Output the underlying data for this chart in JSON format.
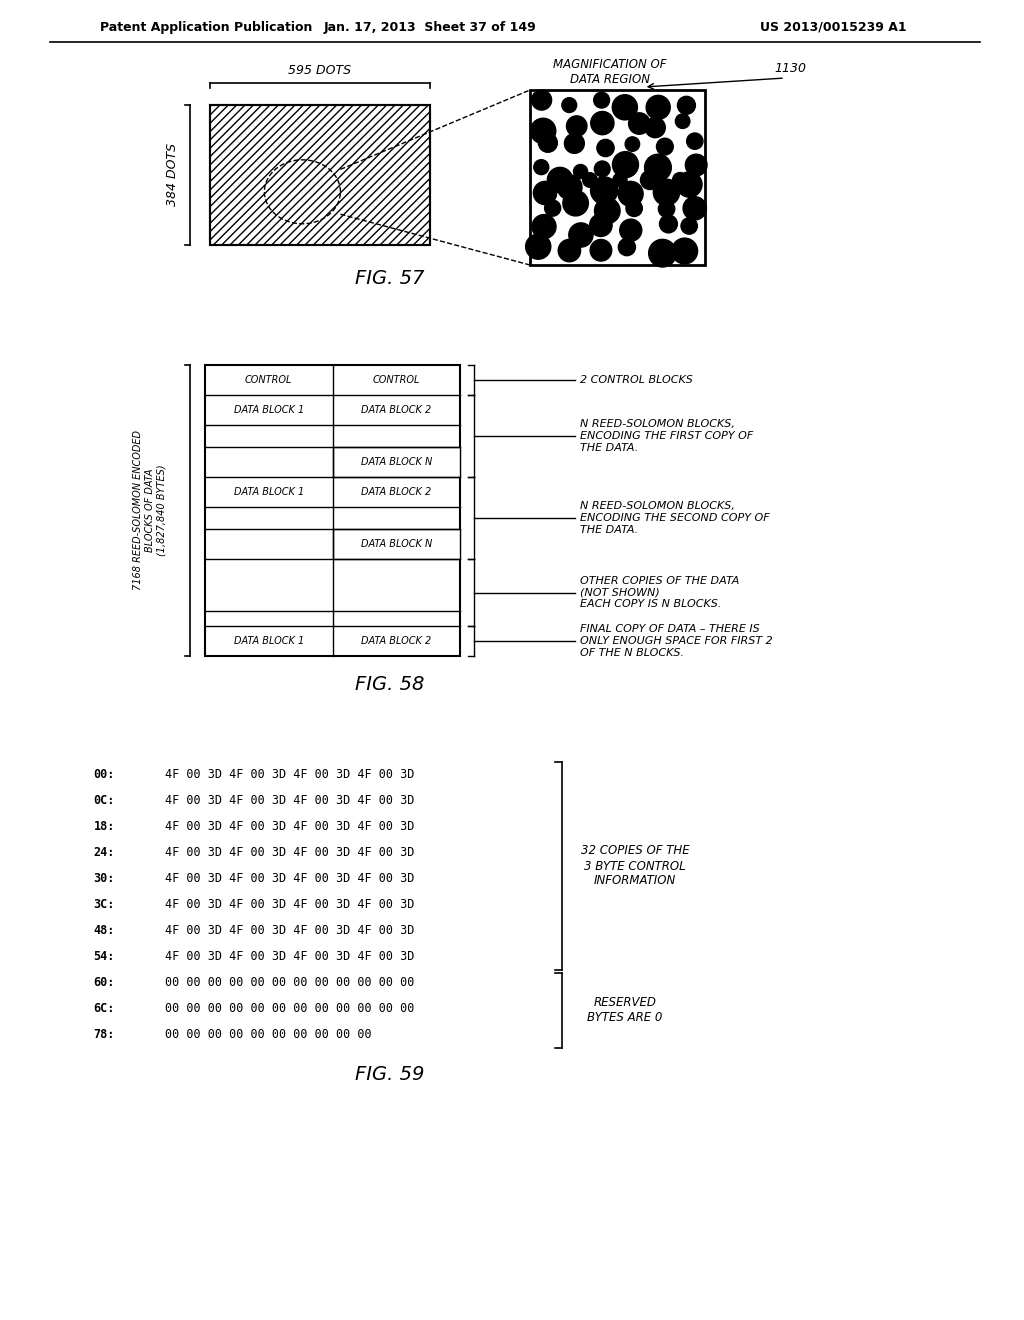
{
  "bg_color": "#ffffff",
  "header_left": "Patent Application Publication",
  "header_mid": "Jan. 17, 2013  Sheet 37 of 149",
  "header_right": "US 2013/0015239 A1",
  "fig57_label": "FIG. 57",
  "fig57_dots_label_top": "595 DOTS",
  "fig57_dots_label_side": "384 DOTS",
  "fig57_magnify_label": "MAGNIFICATION OF\nDATA REGION",
  "fig57_ref_num": "1130",
  "fig58_label": "FIG. 58",
  "fig58_side_label": "7168 REED-SOLOMON ENCODED\nBLOCKS OF DATA\n(1,827,840 BYTES)",
  "fig58_annotations": [
    "2 CONTROL BLOCKS",
    "N REED-SOLOMON BLOCKS,\nENCODING THE FIRST COPY OF\nTHE DATA.",
    "N REED-SOLOMON BLOCKS,\nENCODING THE SECOND COPY OF\nTHE DATA.",
    "OTHER COPIES OF THE DATA\n(NOT SHOWN)\nEACH COPY IS N BLOCKS.",
    "FINAL COPY OF DATA – THERE IS\nONLY ENOUGH SPACE FOR FIRST 2\nOF THE N BLOCKS."
  ],
  "fig59_label": "FIG. 59",
  "fig59_hex_rows": [
    {
      "addr": "00:",
      "data": "4F 00 3D 4F 00 3D 4F 00 3D 4F 00 3D"
    },
    {
      "addr": "0C:",
      "data": "4F 00 3D 4F 00 3D 4F 00 3D 4F 00 3D"
    },
    {
      "addr": "18:",
      "data": "4F 00 3D 4F 00 3D 4F 00 3D 4F 00 3D"
    },
    {
      "addr": "24:",
      "data": "4F 00 3D 4F 00 3D 4F 00 3D 4F 00 3D"
    },
    {
      "addr": "30:",
      "data": "4F 00 3D 4F 00 3D 4F 00 3D 4F 00 3D"
    },
    {
      "addr": "3C:",
      "data": "4F 00 3D 4F 00 3D 4F 00 3D 4F 00 3D"
    },
    {
      "addr": "48:",
      "data": "4F 00 3D 4F 00 3D 4F 00 3D 4F 00 3D"
    },
    {
      "addr": "54:",
      "data": "4F 00 3D 4F 00 3D 4F 00 3D 4F 00 3D"
    },
    {
      "addr": "60:",
      "data": "00 00 00 00 00 00 00 00 00 00 00 00"
    },
    {
      "addr": "6C:",
      "data": "00 00 00 00 00 00 00 00 00 00 00 00"
    },
    {
      "addr": "78:",
      "data": "00 00 00 00 00 00 00 00 00 00"
    }
  ],
  "fig59_annotation1": "32 COPIES OF THE\n3 BYTE CONTROL\nINFORMATION",
  "fig59_annotation2": "RESERVED\nBYTES ARE 0"
}
